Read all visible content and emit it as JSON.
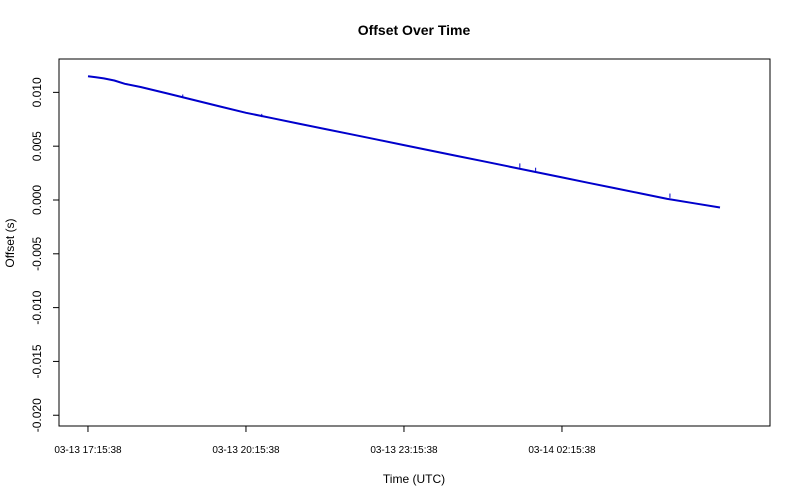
{
  "chart_data": {
    "type": "line",
    "title": "Offset Over Time",
    "xlabel": "Time (UTC)",
    "ylabel": "Offset (s)",
    "x_ticks": [
      "03-13 17:15:38",
      "03-13 20:15:38",
      "03-13 23:15:38",
      "03-14 02:15:38"
    ],
    "x_tick_hours": [
      0,
      3,
      6,
      9
    ],
    "xlim_hours": [
      -0.55,
      12.95
    ],
    "ylim": [
      -0.021,
      0.0131
    ],
    "y_ticks": [
      0.01,
      0.005,
      0.0,
      -0.005,
      -0.01,
      -0.015,
      -0.02
    ],
    "y_tick_labels": [
      "0.010",
      "0.005",
      "0.000",
      "-0.005",
      "-0.010",
      "-0.015",
      "-0.020"
    ],
    "grid": false,
    "series": [
      {
        "color": "#0000cc",
        "x_hours": [
          0.0,
          0.15,
          0.3,
          0.5,
          0.7,
          1.0,
          1.5,
          2.0,
          2.5,
          3.0,
          3.5,
          4.0,
          4.5,
          5.0,
          5.5,
          6.0,
          6.5,
          7.0,
          7.5,
          8.0,
          8.5,
          9.0,
          9.5,
          10.0,
          10.5,
          11.0,
          11.5,
          12.0
        ],
        "y": [
          0.0115,
          0.0114,
          0.0113,
          0.0111,
          0.0108,
          0.0105,
          0.0099,
          0.0093,
          0.0087,
          0.0081,
          0.0076,
          0.0071,
          0.0066,
          0.0061,
          0.0056,
          0.0051,
          0.0046,
          0.0041,
          0.0036,
          0.0031,
          0.0026,
          0.0021,
          0.0016,
          0.0011,
          0.0006,
          0.0001,
          -0.0003,
          -0.0007
        ]
      }
    ],
    "spikes": [
      {
        "x_hours": 1.8,
        "y1": 0.0095,
        "y2": 0.0098
      },
      {
        "x_hours": 3.3,
        "y1": 0.0077,
        "y2": 0.008
      },
      {
        "x_hours": 8.2,
        "y1": 0.003,
        "y2": 0.0034
      },
      {
        "x_hours": 8.5,
        "y1": 0.0027,
        "y2": 0.003
      },
      {
        "x_hours": 11.05,
        "y1": 0.0002,
        "y2": 0.0006
      }
    ]
  }
}
